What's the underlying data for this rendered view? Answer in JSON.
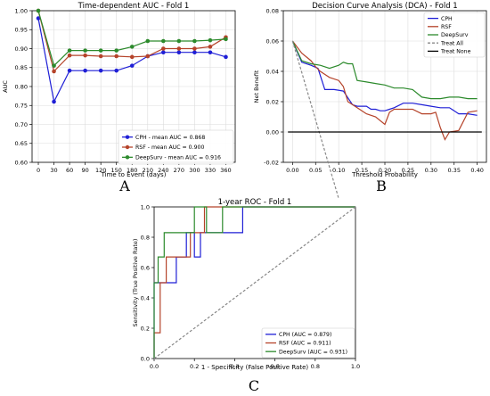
{
  "chart_data": [
    {
      "type": "line",
      "panel_label": "A",
      "title": "Time-dependent AUC - Fold 1",
      "xlabel": "Time to Event (days)",
      "ylabel": "AUC",
      "x_ticks": [
        0,
        30,
        60,
        90,
        120,
        150,
        180,
        210,
        240,
        270,
        300,
        330,
        360
      ],
      "y_ticks": [
        "0.60",
        "0.65",
        "0.70",
        "0.75",
        "0.80",
        "0.85",
        "0.90",
        "0.95",
        "1.00"
      ],
      "xlim": [
        -12,
        378
      ],
      "ylim": [
        0.6,
        1.0
      ],
      "grid": true,
      "legend_position": "lower-right",
      "x": [
        0,
        30,
        60,
        90,
        120,
        150,
        180,
        210,
        240,
        270,
        300,
        330,
        360
      ],
      "series": [
        {
          "name": "CPH - mean AUC = 0.868",
          "color": "#1f1fd6",
          "marker": "circle",
          "values": [
            0.98,
            0.76,
            0.842,
            0.842,
            0.842,
            0.842,
            0.855,
            0.88,
            0.89,
            0.89,
            0.89,
            0.89,
            0.878
          ]
        },
        {
          "name": "RSF - mean AUC = 0.900",
          "color": "#b5432a",
          "marker": "circle",
          "values": [
            1.0,
            0.84,
            0.882,
            0.882,
            0.88,
            0.88,
            0.878,
            0.88,
            0.9,
            0.9,
            0.9,
            0.905,
            0.93
          ]
        },
        {
          "name": "DeepSurv - mean AUC = 0.916",
          "color": "#2c8a2c",
          "marker": "circle",
          "values": [
            1.0,
            0.855,
            0.895,
            0.895,
            0.895,
            0.895,
            0.905,
            0.92,
            0.92,
            0.92,
            0.92,
            0.922,
            0.925
          ]
        }
      ]
    },
    {
      "type": "line",
      "panel_label": "B",
      "title": "Decision Curve Analysis (DCA) - Fold 1",
      "xlabel": "Threshold Probability",
      "ylabel": "Net Benefit",
      "x_ticks": [
        "0.00",
        "0.05",
        "0.10",
        "0.15",
        "0.20",
        "0.25",
        "0.30",
        "0.35",
        "0.40"
      ],
      "y_ticks": [
        "-0.02",
        "0.00",
        "0.02",
        "0.04",
        "0.06",
        "0.08"
      ],
      "xlim": [
        -0.02,
        0.42
      ],
      "ylim": [
        -0.02,
        0.08
      ],
      "grid": true,
      "legend_position": "top-right",
      "series": [
        {
          "name": "CPH",
          "color": "#1f1fd6",
          "dash": "solid",
          "x": [
            0.0,
            0.02,
            0.04,
            0.055,
            0.07,
            0.09,
            0.11,
            0.13,
            0.14,
            0.15,
            0.16,
            0.17,
            0.18,
            0.19,
            0.2,
            0.21,
            0.22,
            0.24,
            0.26,
            0.28,
            0.3,
            0.32,
            0.34,
            0.36,
            0.38,
            0.4
          ],
          "y": [
            0.06,
            0.046,
            0.044,
            0.042,
            0.028,
            0.028,
            0.027,
            0.018,
            0.017,
            0.017,
            0.017,
            0.015,
            0.015,
            0.014,
            0.014,
            0.015,
            0.016,
            0.019,
            0.019,
            0.018,
            0.017,
            0.016,
            0.016,
            0.012,
            0.012,
            0.011
          ]
        },
        {
          "name": "RSF",
          "color": "#b5432a",
          "dash": "solid",
          "x": [
            0.0,
            0.02,
            0.04,
            0.05,
            0.06,
            0.07,
            0.08,
            0.1,
            0.11,
            0.12,
            0.14,
            0.16,
            0.18,
            0.2,
            0.21,
            0.22,
            0.24,
            0.26,
            0.28,
            0.3,
            0.31,
            0.32,
            0.33,
            0.34,
            0.36,
            0.38,
            0.4
          ],
          "y": [
            0.06,
            0.052,
            0.047,
            0.043,
            0.04,
            0.038,
            0.036,
            0.034,
            0.03,
            0.02,
            0.016,
            0.012,
            0.01,
            0.005,
            0.013,
            0.015,
            0.015,
            0.015,
            0.012,
            0.012,
            0.013,
            0.003,
            -0.005,
            0.0,
            0.001,
            0.013,
            0.014
          ]
        },
        {
          "name": "DeepSurv",
          "color": "#2c8a2c",
          "dash": "solid",
          "x": [
            0.0,
            0.02,
            0.04,
            0.06,
            0.08,
            0.1,
            0.11,
            0.12,
            0.13,
            0.14,
            0.16,
            0.18,
            0.2,
            0.22,
            0.24,
            0.26,
            0.28,
            0.3,
            0.32,
            0.34,
            0.36,
            0.38,
            0.4
          ],
          "y": [
            0.06,
            0.047,
            0.045,
            0.044,
            0.042,
            0.044,
            0.046,
            0.045,
            0.045,
            0.034,
            0.033,
            0.032,
            0.031,
            0.029,
            0.029,
            0.028,
            0.023,
            0.022,
            0.022,
            0.023,
            0.023,
            0.022,
            0.022
          ]
        },
        {
          "name": "Treat All",
          "color": "#888888",
          "dash": "dashed",
          "x": [
            0.0,
            0.1
          ],
          "y": [
            0.06,
            -0.044
          ]
        },
        {
          "name": "Treat None",
          "color": "#000000",
          "dash": "solid",
          "x": [
            -0.01,
            0.41
          ],
          "y": [
            0.0,
            0.0
          ]
        }
      ]
    },
    {
      "type": "line",
      "panel_label": "C",
      "title": "1-year ROC - Fold 1",
      "xlabel": "1 - Specificity (False Positive Rate)",
      "ylabel": "Sensitivity (True Positive Rate)",
      "x_ticks": [
        "0.0",
        "0.2",
        "0.4",
        "0.6",
        "0.8",
        "1.0"
      ],
      "y_ticks": [
        "0.0",
        "0.2",
        "0.4",
        "0.6",
        "0.8",
        "1.0"
      ],
      "xlim": [
        0.0,
        1.0
      ],
      "ylim": [
        0.0,
        1.0
      ],
      "grid": false,
      "legend_position": "lower-right",
      "series": [
        {
          "name": "CPH (AUC = 0.879)",
          "color": "#1f1fd6",
          "dash": "solid",
          "x": [
            0.0,
            0.0,
            0.11,
            0.11,
            0.16,
            0.16,
            0.2,
            0.2,
            0.23,
            0.23,
            0.37,
            0.37,
            0.44,
            0.44,
            1.0
          ],
          "y": [
            0.0,
            0.5,
            0.5,
            0.67,
            0.67,
            0.83,
            0.83,
            0.67,
            0.67,
            0.83,
            0.83,
            0.83,
            0.83,
            1.0,
            1.0
          ]
        },
        {
          "name": "RSF (AUC = 0.911)",
          "color": "#b5432a",
          "dash": "solid",
          "x": [
            0.0,
            0.0,
            0.03,
            0.03,
            0.06,
            0.06,
            0.08,
            0.08,
            0.18,
            0.18,
            0.23,
            0.23,
            0.25,
            0.25,
            1.0
          ],
          "y": [
            0.0,
            0.17,
            0.17,
            0.5,
            0.5,
            0.67,
            0.67,
            0.67,
            0.67,
            0.83,
            0.83,
            0.83,
            0.83,
            1.0,
            1.0
          ]
        },
        {
          "name": "DeepSurv (AUC = 0.931)",
          "color": "#2c8a2c",
          "dash": "solid",
          "x": [
            0.0,
            0.0,
            0.02,
            0.02,
            0.05,
            0.05,
            0.2,
            0.2,
            0.26,
            0.26,
            0.34,
            0.34,
            1.0
          ],
          "y": [
            0.0,
            0.5,
            0.5,
            0.67,
            0.67,
            0.83,
            0.83,
            1.0,
            1.0,
            0.83,
            0.83,
            1.0,
            1.0
          ]
        },
        {
          "name": "",
          "color": "#888888",
          "dash": "dashed",
          "x": [
            0.0,
            1.0
          ],
          "y": [
            0.0,
            1.0
          ]
        }
      ]
    }
  ]
}
